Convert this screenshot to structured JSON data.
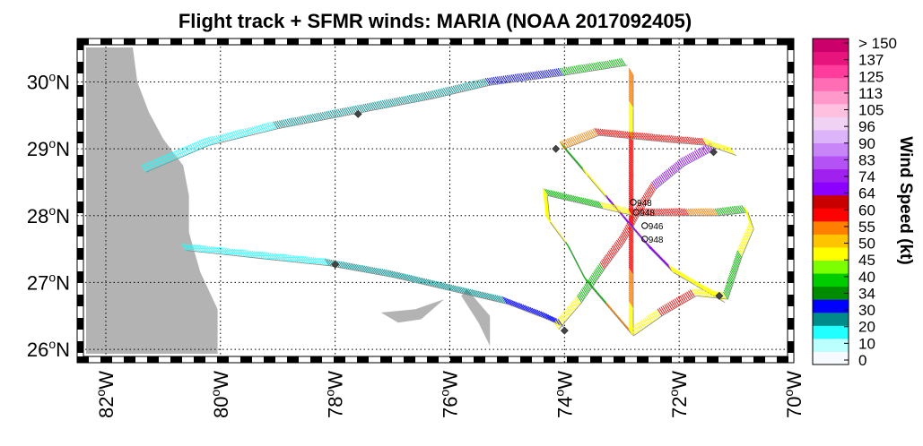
{
  "chart_data": {
    "type": "map",
    "title": "Flight track + SFMR winds: MARIA (NOAA 2017092405)",
    "xlim": [
      -82.5,
      -70
    ],
    "ylim": [
      25.8,
      30.65
    ],
    "x_ticks": [
      {
        "value": -82,
        "label": "82°W",
        "deg": "82",
        "hemi": "W"
      },
      {
        "value": -80,
        "label": "80°W",
        "deg": "80",
        "hemi": "W"
      },
      {
        "value": -78,
        "label": "78°W",
        "deg": "78",
        "hemi": "W"
      },
      {
        "value": -76,
        "label": "76°W",
        "deg": "76",
        "hemi": "W"
      },
      {
        "value": -74,
        "label": "74°W",
        "deg": "74",
        "hemi": "W"
      },
      {
        "value": -72,
        "label": "72°W",
        "deg": "72",
        "hemi": "W"
      },
      {
        "value": -70,
        "label": "70°W",
        "deg": "70",
        "hemi": "W"
      }
    ],
    "y_ticks": [
      {
        "value": 26,
        "label": "26°N",
        "deg": "26",
        "hemi": "N"
      },
      {
        "value": 27,
        "label": "27°N",
        "deg": "27",
        "hemi": "N"
      },
      {
        "value": 28,
        "label": "28°N",
        "deg": "28",
        "hemi": "N"
      },
      {
        "value": 29,
        "label": "29°N",
        "deg": "29",
        "hemi": "N"
      },
      {
        "value": 30,
        "label": "30°N",
        "deg": "30",
        "hemi": "N"
      }
    ],
    "grid": true,
    "land_color": "#b3b3b3",
    "colorbar": {
      "label": "Wind Speed (kt)",
      "tick_labels": [
        "0",
        "10",
        "20",
        "30",
        "34",
        "40",
        "45",
        "50",
        "55",
        "60",
        "64",
        "74",
        "83",
        "90",
        "96",
        "105",
        "113",
        "125",
        "137",
        "> 150"
      ],
      "colors": [
        "#f7fbff",
        "#bcffff",
        "#22ffff",
        "#008b8b",
        "#0000ff",
        "#008b00",
        "#00cd00",
        "#7cff00",
        "#ffff00",
        "#ffc400",
        "#ff7f00",
        "#ff0000",
        "#c80000",
        "#8b00ff",
        "#a020f0",
        "#b452f5",
        "#c885f7",
        "#dcb4fa",
        "#f0d2f5",
        "#ffc0e0",
        "#ff99cc",
        "#ff6eb4",
        "#ff3c9c",
        "#e6147c",
        "#cc006a"
      ]
    },
    "tracks": [
      {
        "name": "outbound-north",
        "colors": [
          "cyan",
          "cyan",
          "teal",
          "teal",
          "teal",
          "blue",
          "green",
          "green"
        ],
        "points": [
          [
            -81.3,
            28.65
          ],
          [
            -80.2,
            29.05
          ],
          [
            -79.0,
            29.3
          ],
          [
            -77.5,
            29.55
          ],
          [
            -76.3,
            29.75
          ],
          [
            -75.3,
            29.95
          ],
          [
            -74.0,
            30.1
          ],
          [
            -72.9,
            30.25
          ]
        ]
      },
      {
        "name": "outbound-south",
        "colors": [
          "cyan",
          "cyan",
          "teal",
          "teal",
          "teal",
          "blue",
          "blue",
          "green"
        ],
        "points": [
          [
            -80.6,
            27.48
          ],
          [
            -79.2,
            27.35
          ],
          [
            -78.1,
            27.25
          ],
          [
            -77.0,
            27.08
          ],
          [
            -76.0,
            26.88
          ],
          [
            -75.0,
            26.68
          ],
          [
            -74.3,
            26.45
          ],
          [
            -74.0,
            26.33
          ]
        ]
      },
      {
        "name": "leg-north-south",
        "colors": [
          "orange",
          "yellow",
          "red",
          "red",
          "red",
          "red",
          "orange",
          "yellow",
          "green"
        ],
        "points": [
          [
            -72.8,
            30.1
          ],
          [
            -72.8,
            29.6
          ],
          [
            -72.8,
            29.1
          ],
          [
            -72.8,
            28.6
          ],
          [
            -72.8,
            28.1
          ],
          [
            -72.8,
            27.6
          ],
          [
            -72.8,
            27.1
          ],
          [
            -72.8,
            26.6
          ],
          [
            -72.8,
            26.2
          ]
        ]
      },
      {
        "name": "leg-sw-ne",
        "colors": [
          "yellow",
          "green",
          "red",
          "red",
          "red",
          "purple",
          "purple",
          "purple"
        ],
        "points": [
          [
            -74.1,
            26.3
          ],
          [
            -73.7,
            26.7
          ],
          [
            -73.3,
            27.2
          ],
          [
            -72.95,
            27.6
          ],
          [
            -72.7,
            28.0
          ],
          [
            -72.4,
            28.4
          ],
          [
            -71.9,
            28.75
          ],
          [
            -71.35,
            29.0
          ]
        ]
      },
      {
        "name": "leg-nw-se",
        "colors": [
          "green",
          "yellow",
          "purple",
          "purple",
          "purple",
          "yellow",
          "yellow",
          "green"
        ],
        "points": [
          [
            -74.0,
            29.0
          ],
          [
            -73.6,
            28.6
          ],
          [
            -73.2,
            28.2
          ],
          [
            -72.9,
            27.9
          ],
          [
            -72.5,
            27.5
          ],
          [
            -72.1,
            27.15
          ],
          [
            -71.7,
            26.95
          ],
          [
            -71.2,
            26.7
          ]
        ]
      },
      {
        "name": "leg-w-e",
        "colors": [
          "green",
          "green",
          "yellow",
          "red",
          "red",
          "orange",
          "green",
          "green"
        ],
        "points": [
          [
            -74.3,
            28.3
          ],
          [
            -73.8,
            28.2
          ],
          [
            -73.3,
            28.1
          ],
          [
            -72.8,
            28.0
          ],
          [
            -72.3,
            28.0
          ],
          [
            -71.8,
            28.0
          ],
          [
            -71.3,
            28.0
          ],
          [
            -70.8,
            28.05
          ]
        ]
      },
      {
        "name": "connectors",
        "colors": [
          "yellow",
          "yellow",
          "green",
          "green",
          "orange",
          "yellow",
          "red",
          "yellow",
          "green",
          "yellow",
          "yellow",
          "green"
        ],
        "points": [
          [
            -74.3,
            28.3
          ],
          [
            -74.25,
            27.9
          ],
          [
            -73.9,
            27.5
          ],
          [
            -73.6,
            27.0
          ],
          [
            -73.2,
            26.6
          ],
          [
            -72.8,
            26.2
          ],
          [
            -72.3,
            26.5
          ],
          [
            -71.7,
            26.8
          ],
          [
            -71.15,
            26.75
          ],
          [
            -70.9,
            27.4
          ],
          [
            -70.7,
            27.8
          ],
          [
            -70.8,
            28.05
          ]
        ]
      },
      {
        "name": "top-ring",
        "colors": [
          "orange",
          "red",
          "red",
          "red",
          "yellow",
          "yellow"
        ],
        "points": [
          [
            -74.0,
            29.0
          ],
          [
            -73.4,
            29.2
          ],
          [
            -72.8,
            29.15
          ],
          [
            -72.2,
            29.1
          ],
          [
            -71.5,
            29.05
          ],
          [
            -71.0,
            28.9
          ]
        ]
      }
    ],
    "obs_markers": [
      {
        "label": "948",
        "lon": -72.8,
        "lat": 28.2
      },
      {
        "label": "948",
        "lon": -72.75,
        "lat": 28.05
      },
      {
        "label": "946",
        "lon": -72.6,
        "lat": 27.85
      },
      {
        "label": "948",
        "lon": -72.6,
        "lat": 27.65
      }
    ],
    "dropsondes": [
      {
        "lon": -77.6,
        "lat": 29.52
      },
      {
        "lon": -78.0,
        "lat": 27.27
      },
      {
        "lon": -74.15,
        "lat": 29.0
      },
      {
        "lon": -71.4,
        "lat": 28.95
      },
      {
        "lon": -71.3,
        "lat": 26.8
      },
      {
        "lon": -74.0,
        "lat": 26.28
      }
    ]
  }
}
